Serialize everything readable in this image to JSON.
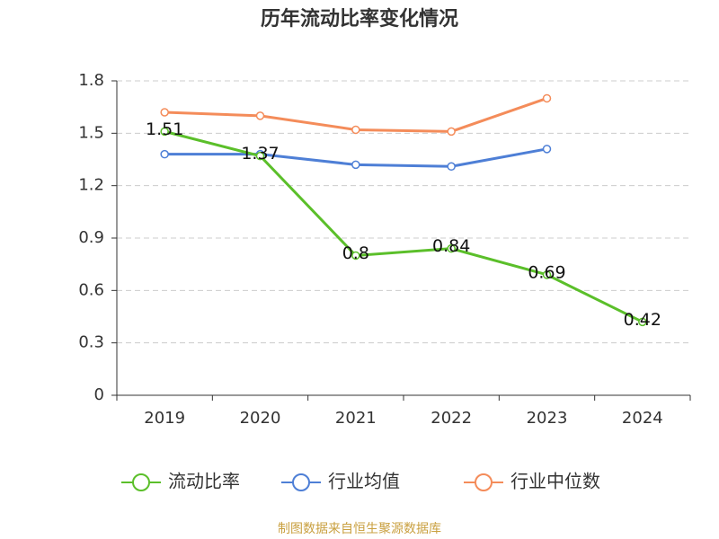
{
  "chart_data": {
    "type": "line",
    "title": "历年流动比率变化情况",
    "categories": [
      "2019",
      "2020",
      "2021",
      "2022",
      "2023",
      "2024"
    ],
    "series": [
      {
        "name": "流动比率",
        "color": "#5bbf2a",
        "values": [
          1.51,
          1.37,
          0.8,
          0.84,
          0.69,
          0.42
        ],
        "labels": true
      },
      {
        "name": "行业均值",
        "color": "#4e7fd6",
        "values": [
          1.38,
          1.38,
          1.32,
          1.31,
          1.41,
          null
        ]
      },
      {
        "name": "行业中位数",
        "color": "#f48c5a",
        "values": [
          1.62,
          1.6,
          1.52,
          1.51,
          1.7,
          null
        ]
      }
    ],
    "ylim": [
      0,
      1.8
    ],
    "yticks": [
      0,
      0.3,
      0.6,
      0.9,
      1.2,
      1.5,
      1.8
    ],
    "grid": true,
    "source": "制图数据来自恒生聚源数据库"
  }
}
